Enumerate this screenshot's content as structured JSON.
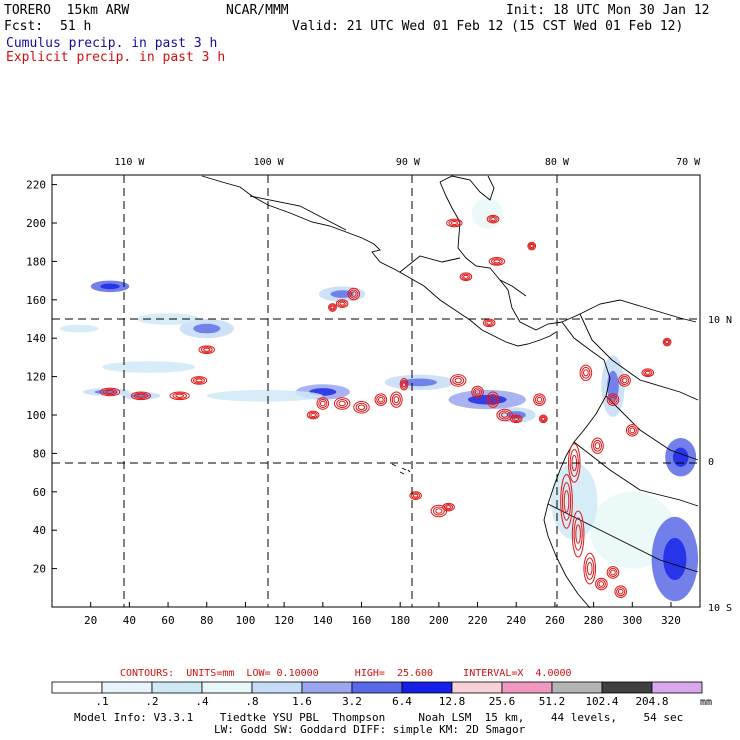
{
  "header": {
    "model": "TORERO  15km ARW",
    "center": "NCAR/MMM",
    "init": "Init: 18 UTC Mon 30 Jan 12",
    "fcst_label": "Fcst:",
    "fcst_value": "51 h",
    "valid": "Valid: 21 UTC Wed 01 Feb 12 (15 CST Wed 01 Feb 12)",
    "line_blue": "Cumulus precip. in past 3 h",
    "line_red": "Explicit precip. in past 3 h"
  },
  "colors": {
    "blue_text": "#1010a0",
    "red_text": "#d01010",
    "contour": "#e01818",
    "coast": "#000000"
  },
  "chart_data": {
    "type": "heatmap",
    "title": "Cumulus precip. in past 3 h / Explicit precip. in past 3 h",
    "x_grid_ticks": [
      20,
      40,
      60,
      80,
      100,
      120,
      140,
      160,
      180,
      200,
      220,
      240,
      260,
      280,
      300,
      320
    ],
    "y_grid_ticks": [
      20,
      40,
      60,
      80,
      100,
      120,
      140,
      160,
      180,
      200,
      220
    ],
    "x_range": [
      0,
      335
    ],
    "y_range": [
      0,
      225
    ],
    "lon_labels": [
      {
        "label": "110 W",
        "x": 40
      },
      {
        "label": "100 W",
        "x": 112
      },
      {
        "label": "90 W",
        "x": 184
      },
      {
        "label": "80 W",
        "x": 261
      },
      {
        "label": "70 W",
        "x": 333
      }
    ],
    "lat_labels": [
      {
        "label": "10 N",
        "y": 150
      },
      {
        "label": "0",
        "y": 76
      },
      {
        "label": "10 S",
        "y": 0
      }
    ],
    "blue_shading_patches": [
      {
        "x": 30,
        "y": 167,
        "rx": 10,
        "ry": 3,
        "level": 5
      },
      {
        "x": 28,
        "y": 112,
        "rx": 12,
        "ry": 2,
        "level": 3
      },
      {
        "x": 46,
        "y": 110,
        "rx": 10,
        "ry": 2,
        "level": 3
      },
      {
        "x": 80,
        "y": 145,
        "rx": 14,
        "ry": 5,
        "level": 3
      },
      {
        "x": 60,
        "y": 150,
        "rx": 16,
        "ry": 3,
        "level": 1
      },
      {
        "x": 150,
        "y": 163,
        "rx": 12,
        "ry": 4,
        "level": 3
      },
      {
        "x": 140,
        "y": 112,
        "rx": 14,
        "ry": 4,
        "level": 4
      },
      {
        "x": 190,
        "y": 117,
        "rx": 18,
        "ry": 4,
        "level": 3
      },
      {
        "x": 225,
        "y": 108,
        "rx": 20,
        "ry": 5,
        "level": 4
      },
      {
        "x": 240,
        "y": 100,
        "rx": 10,
        "ry": 4,
        "level": 3
      },
      {
        "x": 225,
        "y": 205,
        "rx": 8,
        "ry": 8,
        "level": 2
      },
      {
        "x": 300,
        "y": 40,
        "rx": 22,
        "ry": 20,
        "level": 2
      },
      {
        "x": 322,
        "y": 25,
        "rx": 12,
        "ry": 22,
        "level": 5
      },
      {
        "x": 325,
        "y": 78,
        "rx": 8,
        "ry": 10,
        "level": 5
      },
      {
        "x": 290,
        "y": 115,
        "rx": 6,
        "ry": 16,
        "level": 3
      },
      {
        "x": 270,
        "y": 55,
        "rx": 12,
        "ry": 20,
        "level": 1
      },
      {
        "x": 110,
        "y": 110,
        "rx": 30,
        "ry": 3,
        "level": 1
      },
      {
        "x": 50,
        "y": 125,
        "rx": 24,
        "ry": 3,
        "level": 1
      },
      {
        "x": 14,
        "y": 145,
        "rx": 10,
        "ry": 2,
        "level": 1
      }
    ],
    "red_contour_cells": [
      {
        "x": 30,
        "y": 112,
        "rx": 5,
        "ry": 2
      },
      {
        "x": 46,
        "y": 110,
        "rx": 5,
        "ry": 2
      },
      {
        "x": 66,
        "y": 110,
        "rx": 5,
        "ry": 2
      },
      {
        "x": 76,
        "y": 118,
        "rx": 4,
        "ry": 2
      },
      {
        "x": 80,
        "y": 134,
        "rx": 4,
        "ry": 2
      },
      {
        "x": 156,
        "y": 163,
        "rx": 3,
        "ry": 3
      },
      {
        "x": 150,
        "y": 158,
        "rx": 3,
        "ry": 2
      },
      {
        "x": 145,
        "y": 156,
        "rx": 2,
        "ry": 2
      },
      {
        "x": 135,
        "y": 100,
        "rx": 3,
        "ry": 2
      },
      {
        "x": 140,
        "y": 106,
        "rx": 3,
        "ry": 3
      },
      {
        "x": 150,
        "y": 106,
        "rx": 4,
        "ry": 3
      },
      {
        "x": 160,
        "y": 104,
        "rx": 4,
        "ry": 3
      },
      {
        "x": 170,
        "y": 108,
        "rx": 3,
        "ry": 3
      },
      {
        "x": 178,
        "y": 108,
        "rx": 3,
        "ry": 4
      },
      {
        "x": 182,
        "y": 116,
        "rx": 2,
        "ry": 3
      },
      {
        "x": 210,
        "y": 118,
        "rx": 4,
        "ry": 3
      },
      {
        "x": 220,
        "y": 112,
        "rx": 3,
        "ry": 3
      },
      {
        "x": 228,
        "y": 108,
        "rx": 3,
        "ry": 4
      },
      {
        "x": 234,
        "y": 100,
        "rx": 4,
        "ry": 3
      },
      {
        "x": 240,
        "y": 98,
        "rx": 3,
        "ry": 2
      },
      {
        "x": 252,
        "y": 108,
        "rx": 3,
        "ry": 3
      },
      {
        "x": 254,
        "y": 98,
        "rx": 2,
        "ry": 2
      },
      {
        "x": 208,
        "y": 200,
        "rx": 4,
        "ry": 2
      },
      {
        "x": 228,
        "y": 202,
        "rx": 3,
        "ry": 2
      },
      {
        "x": 230,
        "y": 180,
        "rx": 4,
        "ry": 2
      },
      {
        "x": 214,
        "y": 172,
        "rx": 3,
        "ry": 2
      },
      {
        "x": 248,
        "y": 188,
        "rx": 2,
        "ry": 2
      },
      {
        "x": 226,
        "y": 148,
        "rx": 3,
        "ry": 2
      },
      {
        "x": 276,
        "y": 122,
        "rx": 3,
        "ry": 4
      },
      {
        "x": 290,
        "y": 108,
        "rx": 3,
        "ry": 3
      },
      {
        "x": 296,
        "y": 118,
        "rx": 3,
        "ry": 3
      },
      {
        "x": 308,
        "y": 122,
        "rx": 3,
        "ry": 2
      },
      {
        "x": 318,
        "y": 138,
        "rx": 2,
        "ry": 2
      },
      {
        "x": 270,
        "y": 75,
        "rx": 3,
        "ry": 10
      },
      {
        "x": 266,
        "y": 55,
        "rx": 3,
        "ry": 14
      },
      {
        "x": 272,
        "y": 38,
        "rx": 3,
        "ry": 12
      },
      {
        "x": 278,
        "y": 20,
        "rx": 3,
        "ry": 8
      },
      {
        "x": 282,
        "y": 84,
        "rx": 3,
        "ry": 4
      },
      {
        "x": 284,
        "y": 12,
        "rx": 3,
        "ry": 3
      },
      {
        "x": 290,
        "y": 18,
        "rx": 3,
        "ry": 3
      },
      {
        "x": 294,
        "y": 8,
        "rx": 3,
        "ry": 3
      },
      {
        "x": 300,
        "y": 92,
        "rx": 3,
        "ry": 3
      },
      {
        "x": 188,
        "y": 58,
        "rx": 3,
        "ry": 2
      },
      {
        "x": 200,
        "y": 50,
        "rx": 4,
        "ry": 3
      },
      {
        "x": 205,
        "y": 52,
        "rx": 3,
        "ry": 2
      }
    ],
    "legend": {
      "header": "CONTOURS:  UNITS=mm  LOW= 0.10000      HIGH=  25.600     INTERVAL=X  4.0000",
      "thresholds": [
        ".1",
        ".2",
        ".4",
        ".8",
        "1.6",
        "3.2",
        "6.4",
        "12.8",
        "25.6",
        "51.2",
        "102.4",
        "204.8"
      ],
      "unit": "mm",
      "colors": [
        "#ffffff",
        "#e8f4fb",
        "#cfe9f6",
        "#e8f8f8",
        "#c4dcf6",
        "#9aa6ee",
        "#5a6ae6",
        "#1420e6",
        "#f8d0d8",
        "#f098c0",
        "#b4b4b4",
        "#404040",
        "#d8a8ec"
      ]
    }
  },
  "footer": {
    "line1": "Model Info: V3.3.1    Tiedtke YSU PBL  Thompson     Noah LSM  15 km,    44 levels,    54 sec",
    "line2": "LW: Godd SW: Goddard DIFF: simple KM: 2D Smagor"
  }
}
